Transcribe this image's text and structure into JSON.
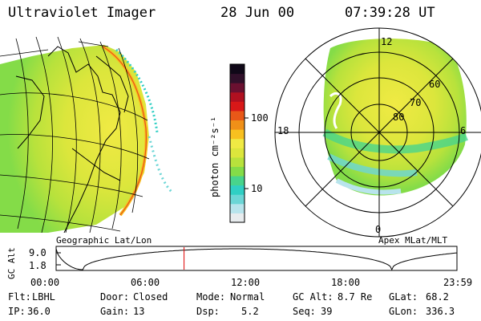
{
  "header": {
    "instrument": "Ultraviolet Imager",
    "date": "28 Jun 00",
    "time": "07:39:28 UT"
  },
  "left_panel": {
    "caption": "Geographic Lat/Lon"
  },
  "right_panel": {
    "caption": "Apex MLat/MLT",
    "mlt_labels": [
      "12",
      "18",
      "6",
      "0"
    ],
    "lat_labels": [
      "60",
      "70",
      "80"
    ]
  },
  "colorbar": {
    "unit_label": "photon cm⁻²s⁻¹",
    "ticks": [
      "100",
      "10"
    ],
    "scale": "log",
    "colors": [
      "#e8ecee",
      "#b8e4ec",
      "#6cd6d6",
      "#30cfc4",
      "#48d48c",
      "#84dc48",
      "#b8e23c",
      "#dce63c",
      "#f0ea44",
      "#f8c020",
      "#f09018",
      "#e85818",
      "#d81818",
      "#b01020",
      "#6a1030",
      "#30102a",
      "#100818"
    ]
  },
  "timeline": {
    "y_axis_label": "GC Alt",
    "y_ticks": [
      "9.0",
      "1.8"
    ],
    "x_ticks": [
      "00:00",
      "06:00",
      "12:00",
      "18:00",
      "23:59"
    ],
    "marker_time_hours": 7.66,
    "marker_color": "#e00000"
  },
  "status": {
    "row1": [
      {
        "key": "Flt:",
        "value": "LBHL"
      },
      {
        "key": "Door:",
        "value": "Closed"
      },
      {
        "key": "Mode:",
        "value": "Normal"
      },
      {
        "key": "GC Alt:",
        "value": "8.7 Re"
      },
      {
        "key": "GLat:",
        "value": "68.2"
      }
    ],
    "row2": [
      {
        "key": "IP:",
        "value": "36.0"
      },
      {
        "key": "Gain:",
        "value": "13"
      },
      {
        "key": "Dsp:",
        "value": "5.2"
      },
      {
        "key": "Seq:",
        "value": "39"
      },
      {
        "key": "GLon:",
        "value": "336.3"
      }
    ]
  }
}
